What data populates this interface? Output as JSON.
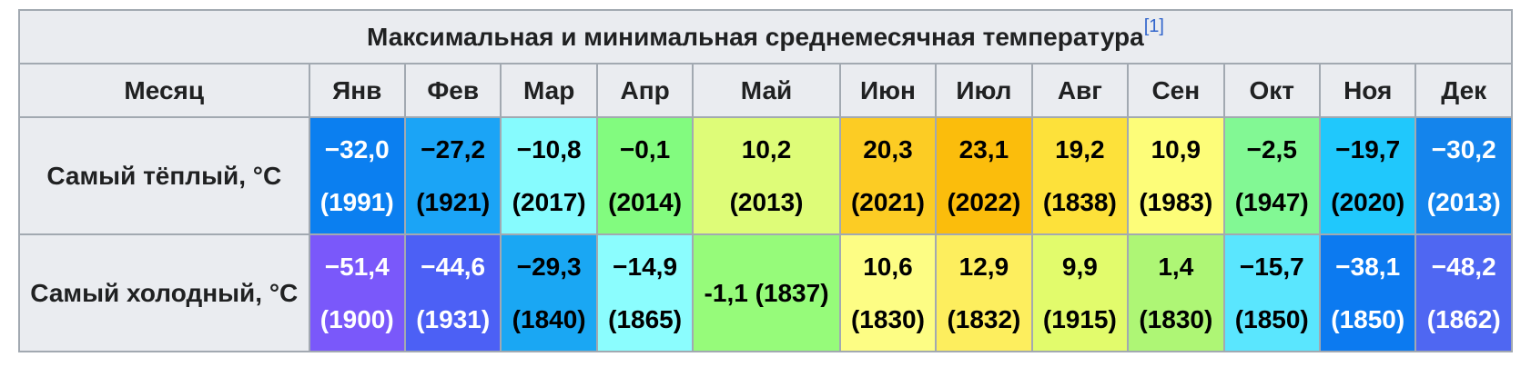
{
  "table": {
    "caption": "Максимальная и минимальная среднемесячная температура",
    "caption_ref": "[1]",
    "month_header": "Месяц",
    "months": [
      "Янв",
      "Фев",
      "Мар",
      "Апр",
      "Май",
      "Июн",
      "Июл",
      "Авг",
      "Сен",
      "Окт",
      "Ноя",
      "Дек"
    ],
    "rows": [
      {
        "label": "Самый тёплый, °C",
        "cells": [
          {
            "value": "−32,0",
            "year": "(1991)",
            "bg": "#0b7ff0",
            "fg": "light"
          },
          {
            "value": "−27,2",
            "year": "(1921)",
            "bg": "#1ba4f6",
            "fg": "dark"
          },
          {
            "value": "−10,8",
            "year": "(2017)",
            "bg": "#86fbfe",
            "fg": "dark"
          },
          {
            "value": "−0,1",
            "year": "(2014)",
            "bg": "#82fb7f",
            "fg": "dark"
          },
          {
            "value": "10,2",
            "year": "(2013)",
            "bg": "#defc78",
            "fg": "dark"
          },
          {
            "value": "20,3",
            "year": "(2021)",
            "bg": "#fccc24",
            "fg": "dark"
          },
          {
            "value": "23,1",
            "year": "(2022)",
            "bg": "#fbbd0c",
            "fg": "dark"
          },
          {
            "value": "19,2",
            "year": "(1838)",
            "bg": "#fde13a",
            "fg": "dark"
          },
          {
            "value": "10,9",
            "year": "(1983)",
            "bg": "#fdfd79",
            "fg": "dark"
          },
          {
            "value": "−2,5",
            "year": "(1947)",
            "bg": "#82f894",
            "fg": "dark"
          },
          {
            "value": "−19,7",
            "year": "(2020)",
            "bg": "#20c8fc",
            "fg": "dark"
          },
          {
            "value": "−30,2",
            "year": "(2013)",
            "bg": "#1484ec",
            "fg": "light"
          }
        ]
      },
      {
        "label": "Самый холодный, °C",
        "cells": [
          {
            "value": "−51,4",
            "year": "(1900)",
            "bg": "#7a58fa",
            "fg": "light"
          },
          {
            "value": "−44,6",
            "year": "(1931)",
            "bg": "#4c60f5",
            "fg": "light"
          },
          {
            "value": "−29,3",
            "year": "(1840)",
            "bg": "#1aa7f3",
            "fg": "dark"
          },
          {
            "value": "−14,9",
            "year": "(1865)",
            "bg": "#8bfdfe",
            "fg": "dark"
          },
          {
            "value": "-1,1 (1837)",
            "year": "",
            "bg": "#96fb7a",
            "fg": "dark"
          },
          {
            "value": "10,6",
            "year": "(1830)",
            "bg": "#fdfd84",
            "fg": "dark"
          },
          {
            "value": "12,9",
            "year": "(1832)",
            "bg": "#fdee5e",
            "fg": "dark"
          },
          {
            "value": "9,9",
            "year": "(1915)",
            "bg": "#e2fb6c",
            "fg": "dark"
          },
          {
            "value": "1,4",
            "year": "(1830)",
            "bg": "#aef675",
            "fg": "dark"
          },
          {
            "value": "−15,7",
            "year": "(1850)",
            "bg": "#5ae6fe",
            "fg": "dark"
          },
          {
            "value": "−38,1",
            "year": "(1850)",
            "bg": "#0c7af0",
            "fg": "light"
          },
          {
            "value": "−48,2",
            "year": "(1862)",
            "bg": "#4f67f2",
            "fg": "light"
          }
        ]
      }
    ]
  }
}
